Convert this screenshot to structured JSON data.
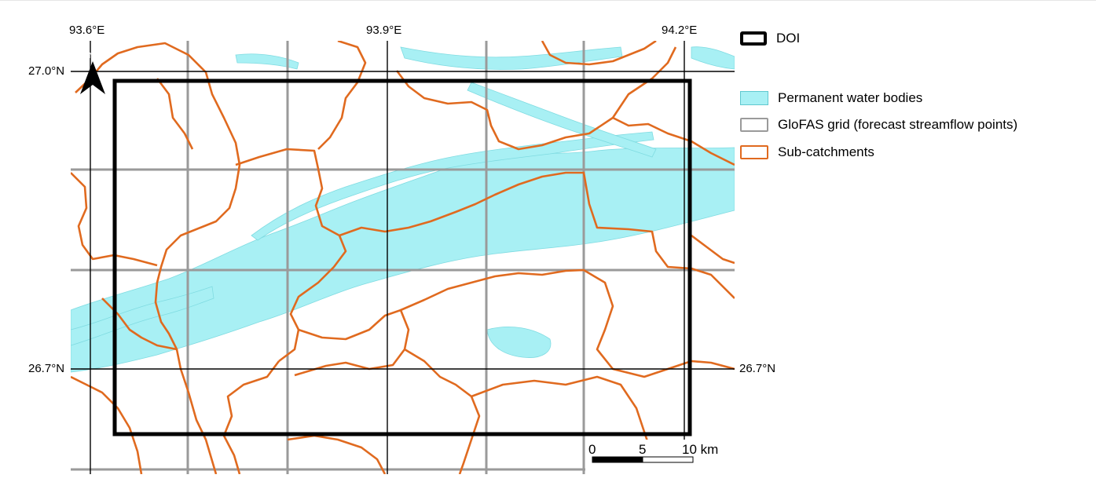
{
  "map": {
    "lon_labels": [
      "93.6°E",
      "93.9°E",
      "94.2°E"
    ],
    "lat_labels": {
      "top_left": "27.0°N",
      "bottom_left": "26.7°N",
      "bottom_right": "26.7°N"
    },
    "north_arrow": {
      "label": "N"
    },
    "scale_bar": {
      "labels": [
        "0",
        "5",
        "10 km"
      ]
    }
  },
  "legend": {
    "items": [
      {
        "label": "DOI",
        "symbol": "thick-black-rectangle"
      },
      {
        "label": "Permanent water bodies",
        "symbol": "cyan-fill"
      },
      {
        "label": "GloFAS grid (forecast streamflow points)",
        "symbol": "grey-outline"
      },
      {
        "label": "Sub-catchments",
        "symbol": "orange-outline"
      }
    ]
  },
  "colors": {
    "water": "#a8f0f4",
    "water_edge": "#5fc8cf",
    "grid": "#9a9a9a",
    "subcatchment": "#e06a1f",
    "doi": "#000000",
    "graticule": "#000000"
  }
}
